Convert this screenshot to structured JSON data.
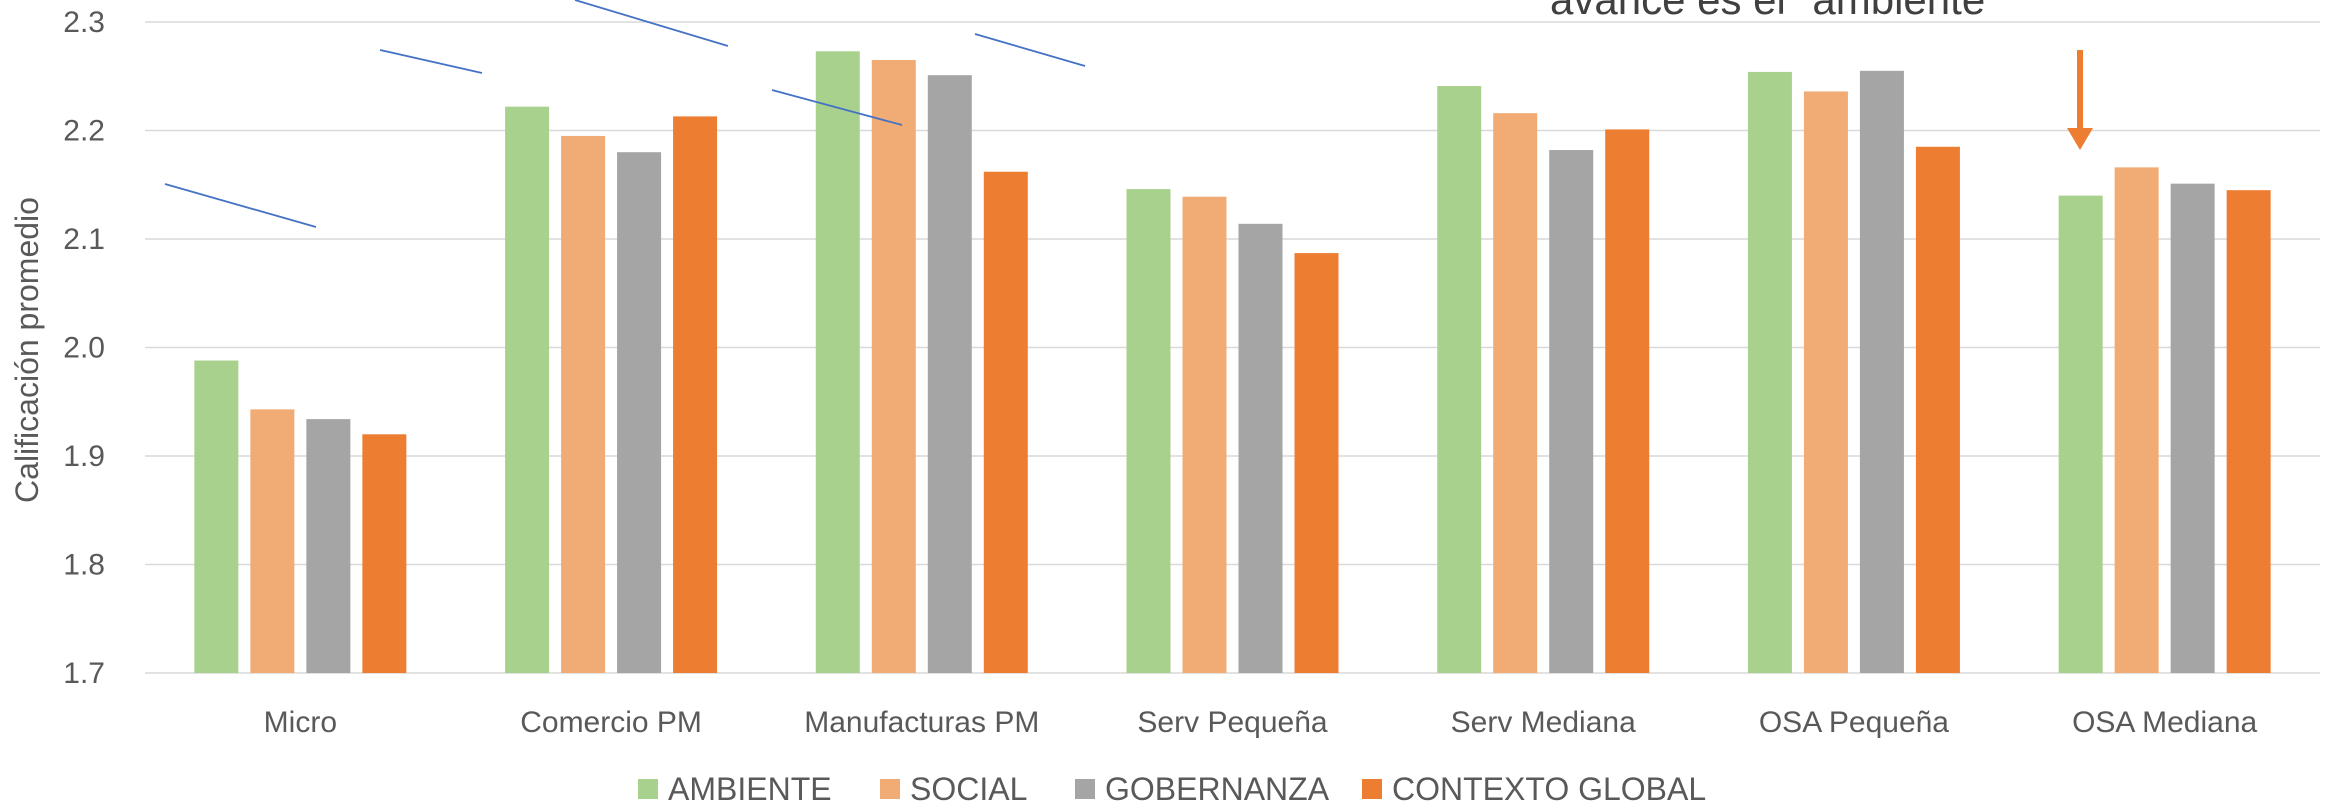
{
  "chart_data": {
    "type": "bar",
    "title": "",
    "xlabel": "",
    "ylabel": "Calificación promedio",
    "ylim": [
      1.7,
      2.3
    ],
    "yticks": [
      "1.7",
      "1.8",
      "1.9",
      "2.0",
      "2.1",
      "2.2",
      "2.3"
    ],
    "grid": true,
    "legend_position": "bottom",
    "categories": [
      "Micro",
      "Comercio PM",
      "Manufacturas PM",
      "Serv Pequeña",
      "Serv Mediana",
      "OSA Pequeña",
      "OSA Mediana"
    ],
    "series": [
      {
        "name": "AMBIENTE",
        "color": "#a9d18e",
        "values": [
          1.988,
          2.222,
          2.273,
          2.146,
          2.241,
          2.254,
          2.14
        ]
      },
      {
        "name": "SOCIAL",
        "color": "#f0ac74",
        "values": [
          1.943,
          2.195,
          2.265,
          2.139,
          2.216,
          2.236,
          2.166
        ]
      },
      {
        "name": "GOBERNANZA",
        "color": "#a5a5a5",
        "values": [
          1.934,
          2.18,
          2.251,
          2.114,
          2.182,
          2.255,
          2.151
        ]
      },
      {
        "name": "CONTEXTO GLOBAL",
        "color": "#ed7d31",
        "values": [
          1.92,
          2.213,
          2.162,
          2.087,
          2.201,
          2.185,
          2.145
        ]
      }
    ],
    "annotation": "avance es el \"ambiente\""
  },
  "colors": {
    "grid": "#d9d9d9",
    "trend_line": "#4472c4",
    "arrow": "#ed7d31"
  }
}
